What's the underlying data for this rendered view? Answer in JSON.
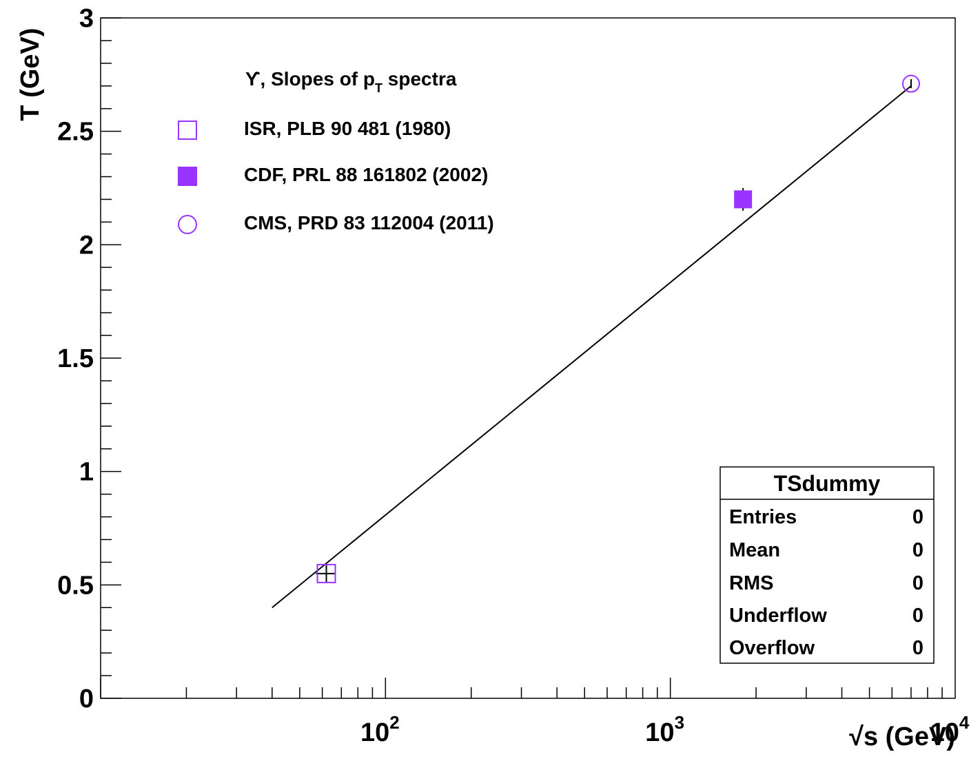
{
  "chart_data": {
    "type": "scatter",
    "xscale": "log",
    "xlim": [
      10,
      10000
    ],
    "ylim": [
      0,
      3
    ],
    "xlabel": "√s (GeV)",
    "ylabel": "T (GeV)",
    "x_ticks": [
      {
        "value": 100,
        "base": "10",
        "exp": "2"
      },
      {
        "value": 1000,
        "base": "10",
        "exp": "3"
      },
      {
        "value": 10000,
        "base": "10",
        "exp": "4"
      }
    ],
    "y_ticks": [
      "0",
      "0.5",
      "1",
      "1.5",
      "2",
      "2.5",
      "3"
    ],
    "grid": false,
    "legend": {
      "title_prefix": "ϒ, Slopes of p",
      "title_sub": "T",
      "title_suffix": " spectra",
      "position": "top-left",
      "entries": [
        {
          "label": "ISR, PLB 90 481 (1980)",
          "marker": "open-square"
        },
        {
          "label": "CDF, PRL 88 161802 (2002)",
          "marker": "filled-square"
        },
        {
          "label": "CMS, PRD 83 112004 (2011)",
          "marker": "open-circle"
        }
      ]
    },
    "series": [
      {
        "name": "ISR, PLB 90 481 (1980)",
        "marker": "open-square",
        "color": "#9933ff",
        "points": [
          {
            "x": 62,
            "y": 0.55,
            "yerr": 0.04,
            "xerr": 5
          }
        ]
      },
      {
        "name": "CDF, PRL 88 161802 (2002)",
        "marker": "filled-square",
        "color": "#9933ff",
        "points": [
          {
            "x": 1800,
            "y": 2.2,
            "yerr": 0.05
          }
        ]
      },
      {
        "name": "CMS, PRD 83 112004 (2011)",
        "marker": "open-circle",
        "color": "#9933ff",
        "points": [
          {
            "x": 7000,
            "y": 2.71,
            "yerr": 0.02
          }
        ]
      }
    ],
    "fit_line": {
      "color": "#000000",
      "x": [
        40,
        7000
      ],
      "y": [
        0.4,
        2.7
      ]
    },
    "stats_box": {
      "title": "TSdummy",
      "position": "bottom-right",
      "rows": [
        {
          "label": "Entries",
          "value": "0"
        },
        {
          "label": "Mean",
          "value": "0"
        },
        {
          "label": "RMS",
          "value": "0"
        },
        {
          "label": "Underflow",
          "value": "0"
        },
        {
          "label": "Overflow",
          "value": "0"
        }
      ]
    },
    "colors": {
      "marker": "#9933ff",
      "axis": "#000000",
      "line": "#000000"
    }
  }
}
